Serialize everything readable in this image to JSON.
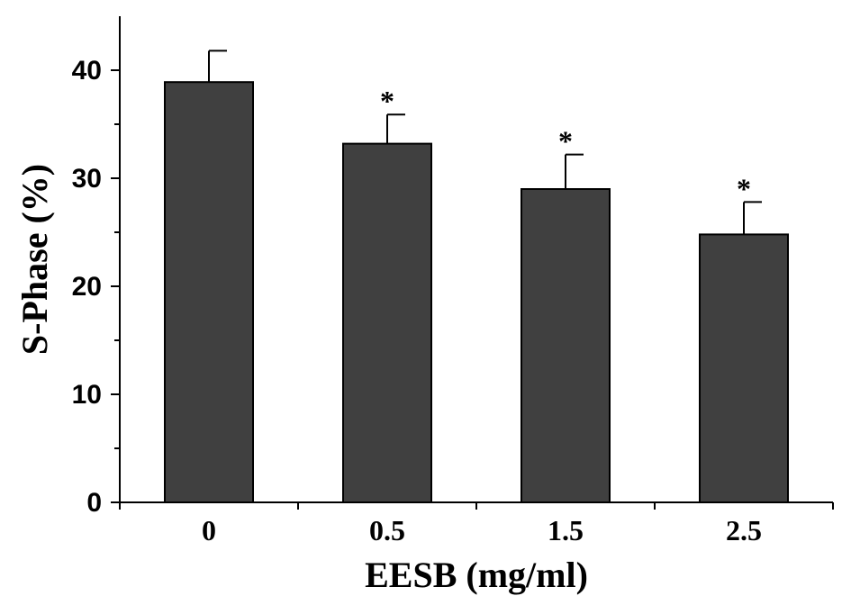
{
  "chart_data": {
    "type": "bar",
    "title": "",
    "xlabel": "EESB (mg/ml)",
    "ylabel": "S-Phase (%)",
    "categories": [
      "0",
      "0.5",
      "1.5",
      "2.5"
    ],
    "values": [
      38.9,
      33.2,
      29.0,
      24.8
    ],
    "errors": [
      2.9,
      2.7,
      3.2,
      3.0
    ],
    "annotations": [
      "",
      "*",
      "*",
      "*"
    ],
    "ylim": [
      0,
      45
    ],
    "yticks": [
      0,
      10,
      20,
      30,
      40
    ],
    "grid": false,
    "bar_color": "#404040"
  }
}
